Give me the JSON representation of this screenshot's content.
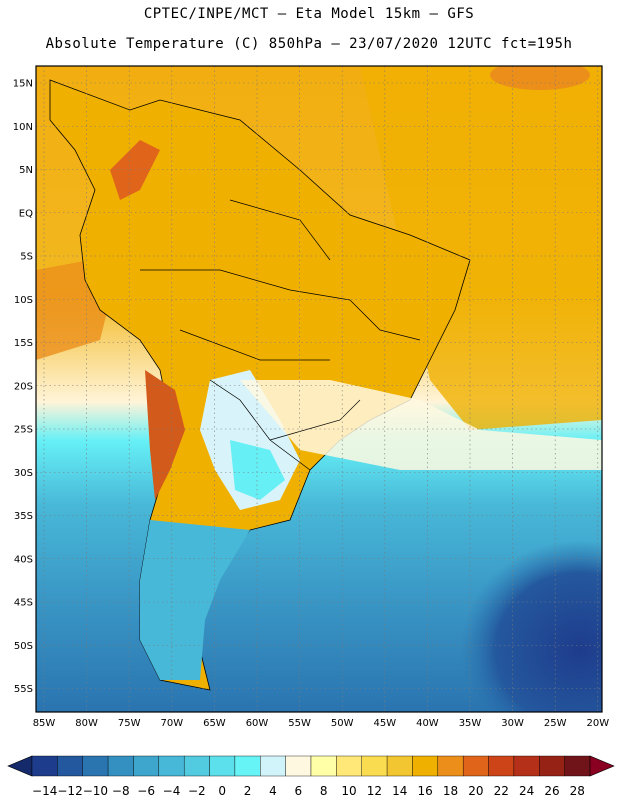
{
  "header": {
    "line1": "CPTEC/INPE/MCT –  Eta Model 15km – GFS",
    "line2": "Absolute Temperature (C) 850hPa – 23/07/2020 12UTC fct=195h"
  },
  "map": {
    "latitude_labels": [
      "15N",
      "10N",
      "5N",
      "EQ",
      "5S",
      "10S",
      "15S",
      "20S",
      "25S",
      "30S",
      "35S",
      "40S",
      "45S",
      "50S",
      "55S"
    ],
    "longitude_labels": [
      "85W",
      "80W",
      "75W",
      "70W",
      "65W",
      "60W",
      "55W",
      "50W",
      "45W",
      "40W",
      "35W",
      "30W",
      "25W",
      "20W"
    ],
    "land_bg": "#f0b000",
    "ocean_north": "#f4b820",
    "ocean_south": "#2a8cb8"
  },
  "colorbar": {
    "labels": [
      "-14",
      "-12",
      "-10",
      "-8",
      "-6",
      "-4",
      "-2",
      "0",
      "2",
      "4",
      "6",
      "8",
      "10",
      "12",
      "14",
      "16",
      "18",
      "20",
      "22",
      "24",
      "26",
      "28"
    ],
    "colors": [
      "#1e3c8c",
      "#24589e",
      "#2a74b0",
      "#3490c0",
      "#3ea6cc",
      "#48b8d8",
      "#52cae0",
      "#5ce0ec",
      "#66f4f6",
      "#d0f4fa",
      "#fff8e0",
      "#ffffa8",
      "#ffe878",
      "#fadc50",
      "#f2c630",
      "#f0b000",
      "#eb8e1a",
      "#e0641a",
      "#cc4418",
      "#b43018",
      "#962216",
      "#70141a"
    ],
    "under_color": "#142a6a",
    "over_color": "#8a0020"
  }
}
